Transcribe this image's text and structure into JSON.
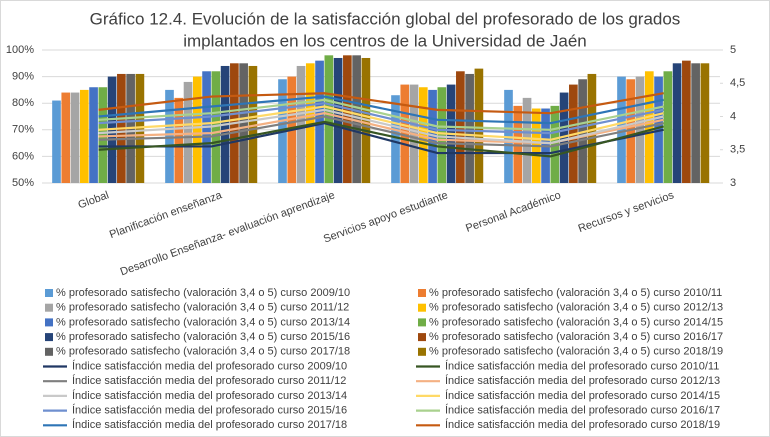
{
  "chart_data": {
    "type": "bar",
    "title": [
      "Gráfico 12.4. Evolución de la satisfacción global del profesorado de los grados",
      "implantados en los centros de la Universidad de Jaén"
    ],
    "categories": [
      "Global",
      "Planificación enseñanza",
      "Desarrollo Enseñanza- evaluación aprendizaje",
      "Servicios apoyo estudiante",
      "Personal Académico",
      "Recursos y servicios"
    ],
    "ylim": [
      50,
      100
    ],
    "yticks": [
      {
        "value": 50,
        "label": "50%"
      },
      {
        "value": 60,
        "label": "60%"
      },
      {
        "value": 70,
        "label": "70%"
      },
      {
        "value": 80,
        "label": "80%"
      },
      {
        "value": 90,
        "label": "90%"
      },
      {
        "value": 100,
        "label": "100%"
      }
    ],
    "y2lim": [
      3,
      5
    ],
    "y2ticks": [
      3,
      {
        "value": 3.5,
        "label": "3,5"
      },
      4,
      {
        "value": 4.5,
        "label": "4,5"
      },
      5
    ],
    "grid": true,
    "series": [
      {
        "name": "% profesorado satisfecho (valoración 3,4  o 5) curso 2009/10",
        "type": "bar",
        "color": "#5b9bd5",
        "values": [
          81,
          85,
          89,
          83,
          85,
          90
        ]
      },
      {
        "name": "% profesorado satisfecho (valoración 3,4  o 5) curso 2010/11",
        "type": "bar",
        "color": "#ed7d31",
        "values": [
          84,
          82,
          90,
          87,
          79,
          89
        ]
      },
      {
        "name": "% profesorado satisfecho (valoración 3,4  o 5) curso 2011/12",
        "type": "bar",
        "color": "#a5a5a5",
        "values": [
          84,
          88,
          94,
          87,
          82,
          90
        ]
      },
      {
        "name": "% profesorado satisfecho (valoración 3,4  o 5) curso 2012/13",
        "type": "bar",
        "color": "#ffc000",
        "values": [
          85,
          90,
          95,
          86,
          78,
          92
        ]
      },
      {
        "name": "% profesorado satisfecho (valoración 3,4  o 5) curso 2013/14",
        "type": "bar",
        "color": "#4472c4",
        "values": [
          86,
          92,
          96,
          85,
          78,
          90
        ]
      },
      {
        "name": "% profesorado satisfecho (valoración 3,4  o 5) curso 2014/15",
        "type": "bar",
        "color": "#70ad47",
        "values": [
          86,
          92,
          98,
          86,
          79,
          92
        ]
      },
      {
        "name": "% profesorado satisfecho (valoración 3,4  o 5) curso 2015/16",
        "type": "bar",
        "color": "#264478",
        "values": [
          90,
          94,
          97,
          87,
          84,
          95
        ]
      },
      {
        "name": "% profesorado satisfecho (valoración 3,4  o 5) curso 2016/17",
        "type": "bar",
        "color": "#9e480e",
        "values": [
          91,
          95,
          98,
          92,
          87,
          96
        ]
      },
      {
        "name": "% profesorado satisfecho (valoración 3,4  o 5) curso 2017/18",
        "type": "bar",
        "color": "#636363",
        "values": [
          91,
          95,
          98,
          91,
          89,
          95
        ]
      },
      {
        "name": "% profesorado satisfecho (valoración 3,4  o 5) curso 2018/19",
        "type": "bar",
        "color": "#997300",
        "values": [
          91,
          94,
          97,
          93,
          91,
          95
        ]
      },
      {
        "name": "Índice satisfacción media del profesorado curso 2009/10",
        "type": "line",
        "axis": "y2",
        "color": "#203864",
        "values": [
          3.55,
          3.55,
          3.9,
          3.45,
          3.45,
          3.8
        ]
      },
      {
        "name": "Índice satisfacción media del profesorado curso 2010/11",
        "type": "line",
        "axis": "y2",
        "color": "#375623",
        "values": [
          3.5,
          3.6,
          3.92,
          3.55,
          3.4,
          3.85
        ]
      },
      {
        "name": "Índice satisfacción media del profesorado curso 2011/12",
        "type": "line",
        "axis": "y2",
        "color": "#7f7f7f",
        "values": [
          3.65,
          3.7,
          4.0,
          3.6,
          3.55,
          3.9
        ]
      },
      {
        "name": "Índice satisfacción media del profesorado curso 2012/13",
        "type": "line",
        "axis": "y2",
        "color": "#f4b183",
        "values": [
          3.7,
          3.75,
          4.05,
          3.65,
          3.6,
          3.95
        ]
      },
      {
        "name": "Índice satisfacción media del profesorado curso 2013/14",
        "type": "line",
        "axis": "y2",
        "color": "#c9c9c9",
        "values": [
          3.75,
          3.85,
          4.1,
          3.7,
          3.6,
          4.0
        ]
      },
      {
        "name": "Índice satisfacción media del profesorado curso 2014/15",
        "type": "line",
        "axis": "y2",
        "color": "#ffd966",
        "values": [
          3.8,
          3.9,
          4.15,
          3.75,
          3.65,
          4.05
        ]
      },
      {
        "name": "Índice satisfacción media del profesorado curso 2015/16",
        "type": "line",
        "axis": "y2",
        "color": "#6f8fcf",
        "values": [
          3.9,
          4.0,
          4.2,
          3.8,
          3.75,
          4.1
        ]
      },
      {
        "name": "Índice satisfacción media del profesorado curso 2016/17",
        "type": "line",
        "axis": "y2",
        "color": "#a9d18e",
        "values": [
          3.95,
          4.05,
          4.25,
          3.85,
          3.8,
          4.15
        ]
      },
      {
        "name": "Índice satisfacción media del profesorado curso 2017/18",
        "type": "line",
        "axis": "y2",
        "color": "#2e75b6",
        "values": [
          4.0,
          4.15,
          4.3,
          3.95,
          3.9,
          4.25
        ]
      },
      {
        "name": "Índice satisfacción media del profesorado curso 2018/19",
        "type": "line",
        "axis": "y2",
        "color": "#c55a11",
        "values": [
          4.1,
          4.3,
          4.35,
          4.1,
          4.05,
          4.35
        ]
      }
    ]
  }
}
